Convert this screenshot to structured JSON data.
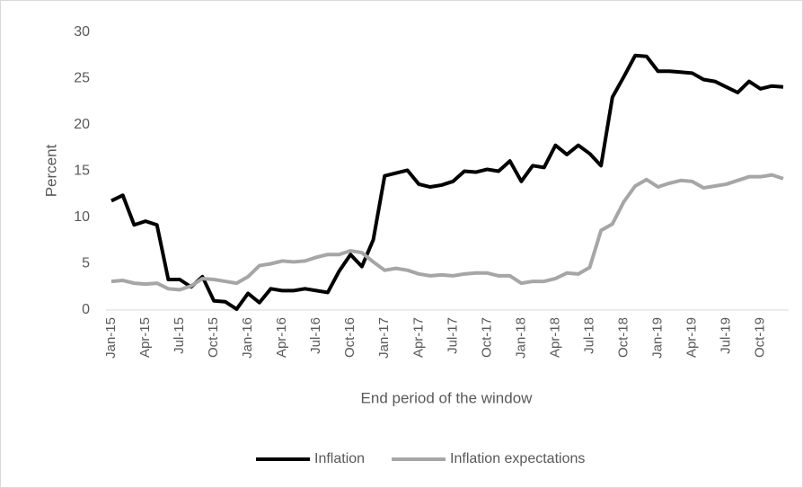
{
  "chart_data": {
    "type": "line",
    "x_label": "End period of the window",
    "y_label": "Percent",
    "categories": [
      "Jan-15",
      null,
      null,
      "Apr-15",
      null,
      null,
      "Jul-15",
      null,
      null,
      "Oct-15",
      null,
      null,
      "Jan-16",
      null,
      null,
      "Apr-16",
      null,
      null,
      "Jul-16",
      null,
      null,
      "Oct-16",
      null,
      null,
      "Jan-17",
      null,
      null,
      "Apr-17",
      null,
      null,
      "Jul-17",
      null,
      null,
      "Oct-17",
      null,
      null,
      "Jan-18",
      null,
      null,
      "Apr-18",
      null,
      null,
      "Jul-18",
      null,
      null,
      "Oct-18",
      null,
      null,
      "Jan-19",
      null,
      null,
      "Apr-19",
      null,
      null,
      "Jul-19",
      null,
      null,
      "Oct-19",
      null,
      null
    ],
    "series": [
      {
        "name": "Inflation",
        "color": "#000000",
        "values": [
          11.8,
          12.4,
          9.2,
          9.6,
          9.2,
          3.3,
          3.3,
          2.5,
          3.6,
          1.0,
          0.9,
          0.1,
          1.8,
          0.8,
          2.3,
          2.1,
          2.1,
          2.3,
          2.1,
          1.9,
          4.2,
          6.0,
          4.7,
          7.6,
          14.5,
          14.8,
          15.1,
          13.6,
          13.3,
          13.5,
          13.9,
          15.0,
          14.9,
          15.2,
          15.0,
          16.1,
          13.9,
          15.6,
          15.4,
          17.8,
          16.8,
          17.8,
          16.9,
          15.6,
          23.0,
          25.2,
          27.5,
          27.4,
          25.8,
          25.8,
          25.7,
          25.6,
          24.9,
          24.7,
          24.1,
          23.5,
          24.7,
          23.9,
          24.2,
          24.1
        ]
      },
      {
        "name": "Inflation expectations",
        "color": "#a6a6a6",
        "values": [
          3.1,
          3.2,
          2.9,
          2.8,
          2.9,
          2.3,
          2.2,
          2.6,
          3.4,
          3.3,
          3.1,
          2.9,
          3.6,
          4.8,
          5.0,
          5.3,
          5.2,
          5.3,
          5.7,
          6.0,
          6.0,
          6.4,
          6.2,
          5.2,
          4.3,
          4.5,
          4.3,
          3.9,
          3.7,
          3.8,
          3.7,
          3.9,
          4.0,
          4.0,
          3.7,
          3.7,
          2.9,
          3.1,
          3.1,
          3.4,
          4.0,
          3.9,
          4.6,
          8.6,
          9.3,
          11.7,
          13.4,
          14.1,
          13.3,
          13.7,
          14.0,
          13.9,
          13.2,
          13.4,
          13.6,
          14.0,
          14.4,
          14.4,
          14.6,
          14.2
        ]
      }
    ],
    "ylim": [
      0,
      30
    ],
    "yticks": [
      0,
      5,
      10,
      15,
      20,
      25,
      30
    ],
    "grid": false,
    "legend": "bottom"
  }
}
